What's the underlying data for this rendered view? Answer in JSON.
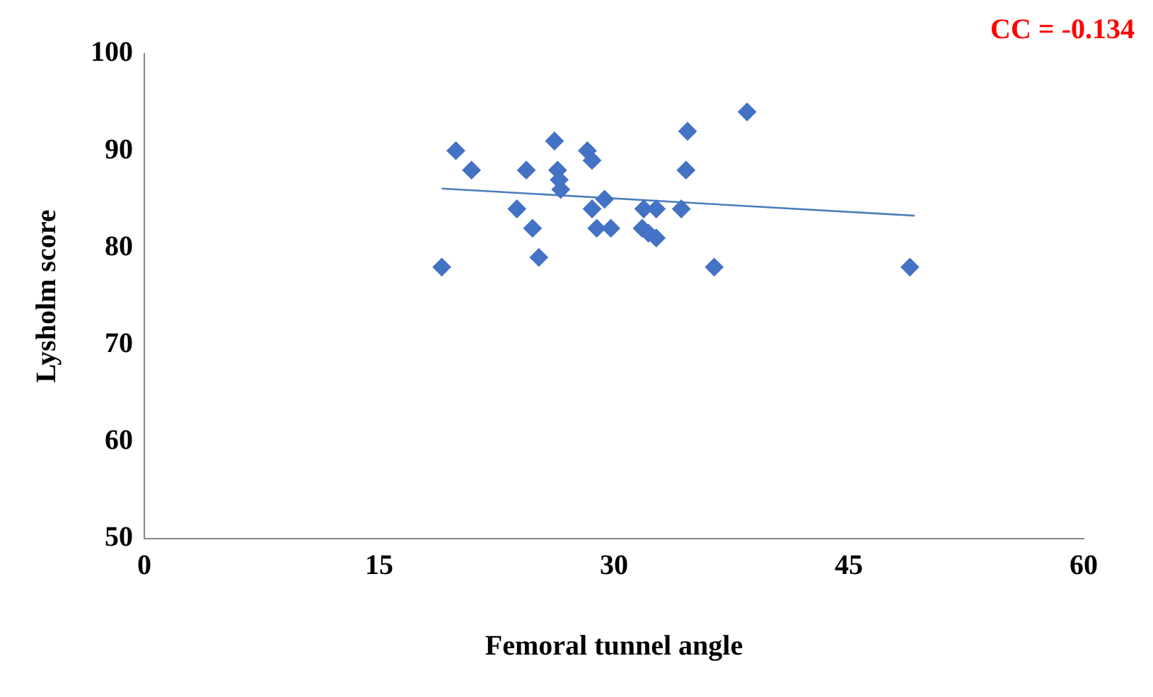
{
  "chart_data": {
    "type": "scatter",
    "xlabel": "Femoral tunnel angle",
    "ylabel": "Lysholm score",
    "annotations": [
      "CC = -0.134"
    ],
    "xlim": [
      0,
      60
    ],
    "xticks": [
      0,
      15,
      30,
      45,
      60
    ],
    "ylim": [
      50,
      100
    ],
    "yticks": [
      50,
      60,
      70,
      80,
      90,
      100
    ],
    "grid": false,
    "legend": false,
    "series": [
      {
        "color": "#4472c4",
        "marker": "diamond",
        "x": [
          19,
          19.9,
          20.9,
          24.4,
          23.8,
          24.8,
          25.2,
          26.2,
          26.4,
          26.5,
          26.6,
          28.3,
          28.6,
          29.4,
          28.6,
          28.9,
          29.8,
          31.9,
          32.7,
          31.8,
          32.2,
          32.7,
          34.3,
          34.6,
          34.7,
          36.4,
          38.5,
          48.9
        ],
        "values": [
          78,
          90,
          88,
          88,
          84,
          82,
          79,
          91,
          88,
          87,
          86,
          90,
          89,
          85,
          84,
          82,
          82,
          84,
          84,
          82,
          81.5,
          81,
          84,
          88,
          92,
          78,
          94,
          78
        ]
      },
      {
        "type": "line",
        "marker": "none",
        "color": "#4a7ebb",
        "x": [
          19,
          49.2
        ],
        "values": [
          86.1,
          83.3
        ]
      }
    ]
  }
}
